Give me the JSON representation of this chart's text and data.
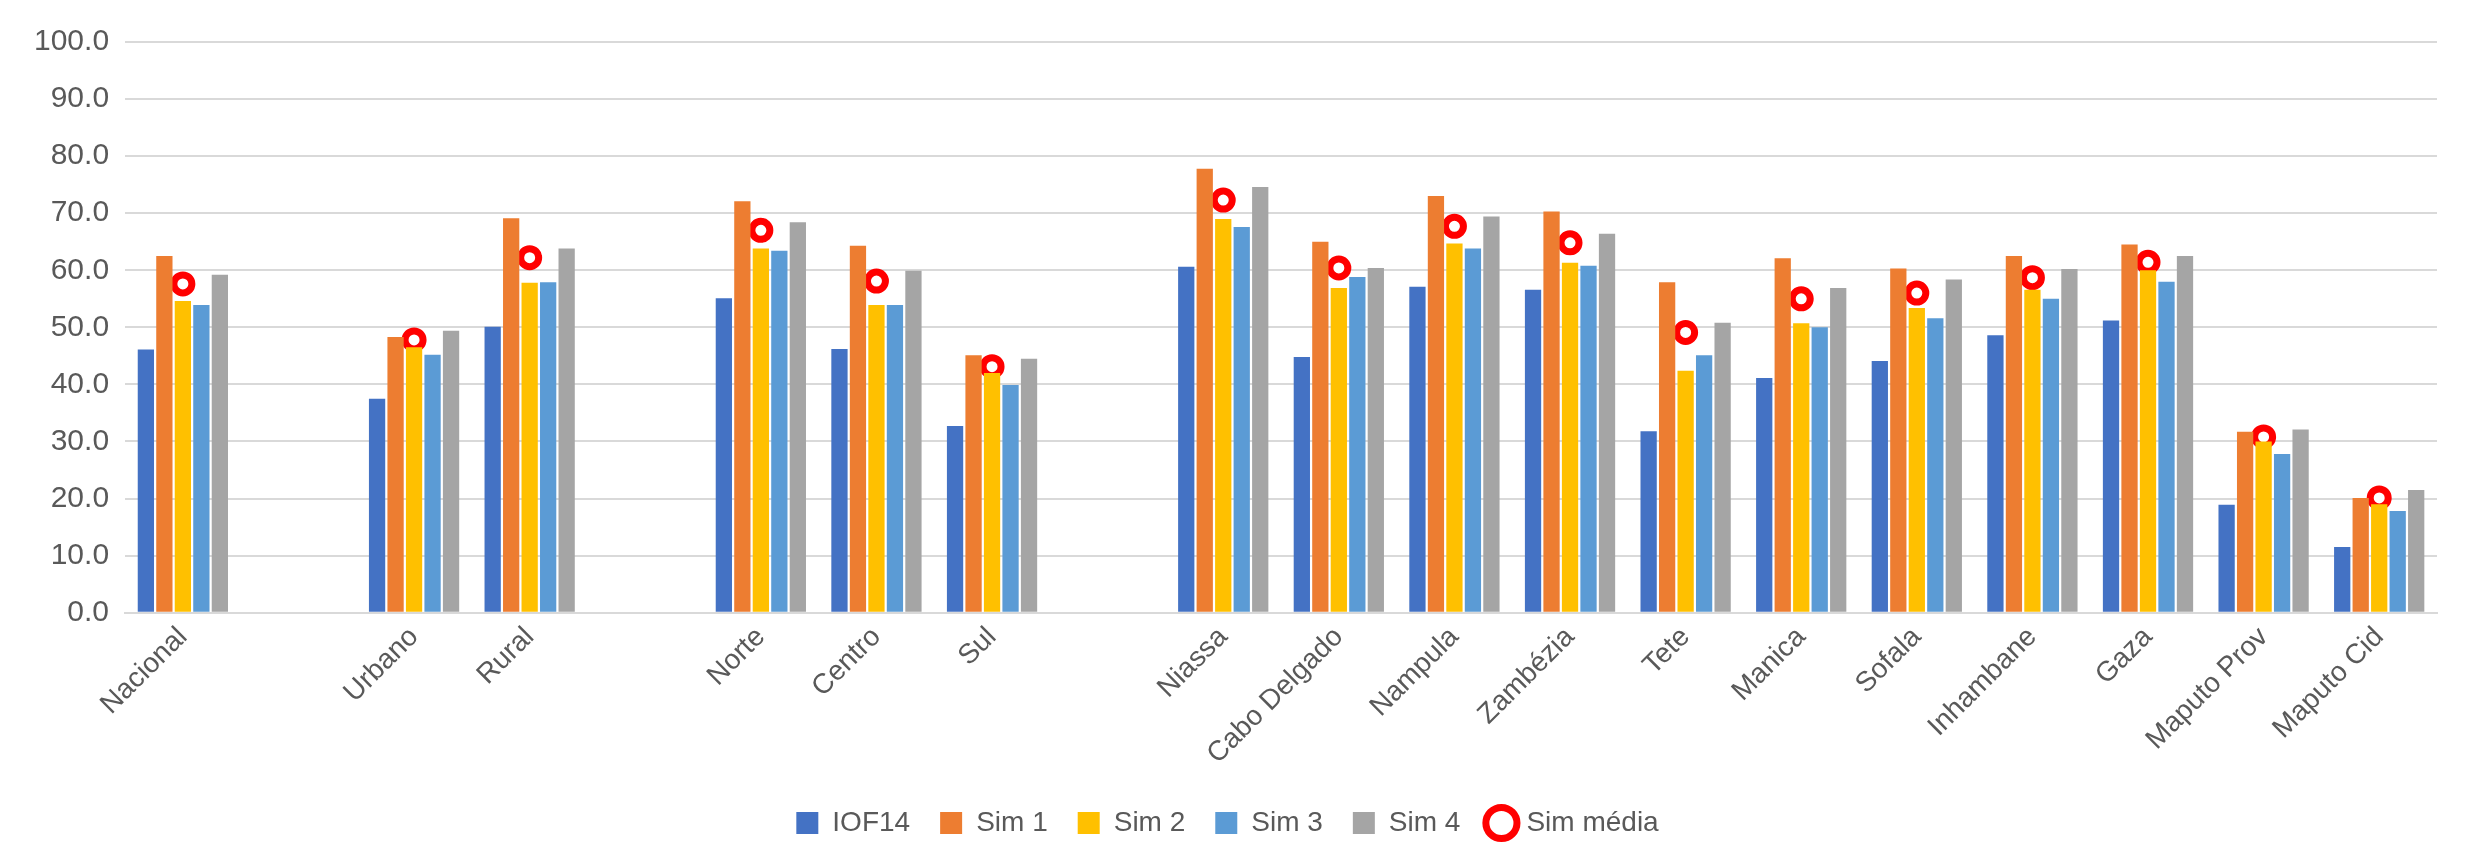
{
  "chart_data": {
    "type": "bar",
    "categories": [
      "Nacional",
      null,
      "Urbano",
      "Rural",
      null,
      "Norte",
      "Centro",
      "Sul",
      null,
      "Niassa",
      "Cabo Delgado",
      "Nampula",
      "Zambézia",
      "Tete",
      "Manica",
      "Sofala",
      "Inhambane",
      "Gaza",
      "Maputo Prov",
      "Maputo Cid"
    ],
    "series": [
      {
        "name": "IOF14",
        "color": "#4472c4",
        "values": [
          46.1,
          null,
          37.5,
          50.1,
          null,
          55.1,
          46.2,
          32.7,
          null,
          60.6,
          44.8,
          57.1,
          56.6,
          31.8,
          41.1,
          44.1,
          48.6,
          51.2,
          18.9,
          11.5
        ]
      },
      {
        "name": "Sim 1",
        "color": "#ed7d31",
        "values": [
          62.5,
          null,
          48.3,
          69.1,
          null,
          72.1,
          64.3,
          45.1,
          null,
          77.8,
          65.0,
          73.0,
          70.3,
          57.9,
          62.1,
          60.3,
          62.5,
          64.5,
          31.7,
          20.1
        ]
      },
      {
        "name": "Sim 2",
        "color": "#ffc000",
        "values": [
          54.6,
          null,
          46.5,
          57.8,
          null,
          63.8,
          53.9,
          42.0,
          null,
          69.0,
          56.9,
          64.7,
          61.3,
          42.4,
          50.7,
          53.4,
          56.6,
          60.0,
          30.0,
          19.0
        ]
      },
      {
        "name": "Sim 3",
        "color": "#5b9bd5",
        "values": [
          53.9,
          null,
          45.2,
          57.9,
          null,
          63.4,
          53.9,
          39.9,
          null,
          67.6,
          58.8,
          63.8,
          60.8,
          45.1,
          50.0,
          51.6,
          55.0,
          58.0,
          27.8,
          17.8
        ]
      },
      {
        "name": "Sim 4",
        "color": "#a5a5a5",
        "values": [
          59.2,
          null,
          49.4,
          63.8,
          null,
          68.4,
          59.9,
          44.5,
          null,
          74.6,
          60.4,
          69.4,
          66.4,
          50.8,
          56.9,
          58.4,
          60.2,
          62.5,
          32.1,
          21.5
        ]
      },
      {
        "name": "Sim média",
        "type": "scatter",
        "color": "#ff0000",
        "values": [
          57.6,
          null,
          47.8,
          62.2,
          null,
          67.0,
          58.1,
          43.1,
          null,
          72.3,
          60.4,
          67.7,
          64.8,
          49.1,
          55.0,
          56.0,
          58.7,
          61.4,
          30.8,
          20.1
        ]
      }
    ],
    "ylim": [
      0,
      100
    ],
    "yticks": [
      {
        "value": 0,
        "label": "0.0"
      },
      {
        "value": 10,
        "label": "10.0"
      },
      {
        "value": 20,
        "label": "20.0"
      },
      {
        "value": 30,
        "label": "30.0"
      },
      {
        "value": 40,
        "label": "40.0"
      },
      {
        "value": 50,
        "label": "50.0"
      },
      {
        "value": 60,
        "label": "60.0"
      },
      {
        "value": 70,
        "label": "70.0"
      },
      {
        "value": 80,
        "label": "80.0"
      },
      {
        "value": 90,
        "label": "90.0"
      },
      {
        "value": 100,
        "label": "100.0"
      }
    ],
    "grid": "y",
    "legend": "bottom",
    "marker": "circle"
  }
}
